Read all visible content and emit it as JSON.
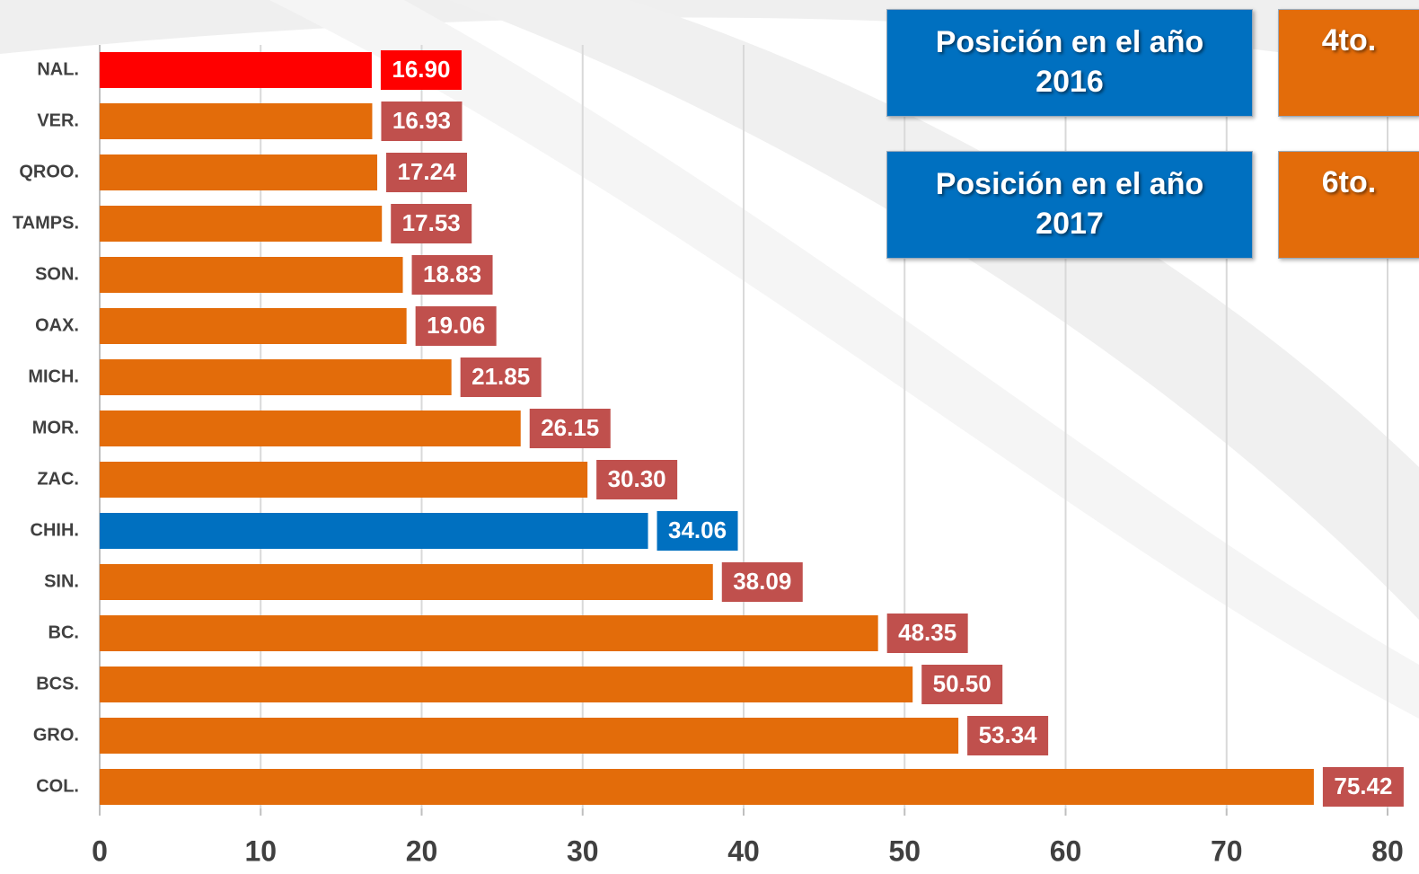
{
  "chart_data": {
    "type": "bar",
    "orientation": "horizontal",
    "categories": [
      "NAL.",
      "VER.",
      "QROO.",
      "TAMPS.",
      "SON.",
      "OAX.",
      "MICH.",
      "MOR.",
      "ZAC.",
      "CHIH.",
      "SIN.",
      "BC.",
      "BCS.",
      "GRO.",
      "COL."
    ],
    "values": [
      16.9,
      16.93,
      17.24,
      17.53,
      18.83,
      19.06,
      21.85,
      26.15,
      30.3,
      34.06,
      38.09,
      48.35,
      50.5,
      53.34,
      75.42
    ],
    "value_labels": [
      "16.90",
      "16.93",
      "17.24",
      "17.53",
      "18.83",
      "19.06",
      "21.85",
      "26.15",
      "30.30",
      "34.06",
      "38.09",
      "48.35",
      "50.50",
      "53.34",
      "75.42"
    ],
    "colors": [
      "#ff0000",
      "#e36c0a",
      "#e36c0a",
      "#e36c0a",
      "#e36c0a",
      "#e36c0a",
      "#e36c0a",
      "#e36c0a",
      "#e36c0a",
      "#0070c0",
      "#e36c0a",
      "#e36c0a",
      "#e36c0a",
      "#e36c0a",
      "#e36c0a"
    ],
    "label_colors": [
      "#ff0000",
      "#c0504d",
      "#c0504d",
      "#c0504d",
      "#c0504d",
      "#c0504d",
      "#c0504d",
      "#c0504d",
      "#c0504d",
      "#0070c0",
      "#c0504d",
      "#c0504d",
      "#c0504d",
      "#c0504d",
      "#c0504d"
    ],
    "xlim": [
      0,
      80
    ],
    "xticks": [
      0,
      10,
      20,
      30,
      40,
      50,
      60,
      70,
      80
    ],
    "grid": true
  },
  "boxes": [
    {
      "label": "Posición en el año 2016",
      "rank": "4to."
    },
    {
      "label": "Posición en el año 2017",
      "rank": "6to."
    }
  ]
}
